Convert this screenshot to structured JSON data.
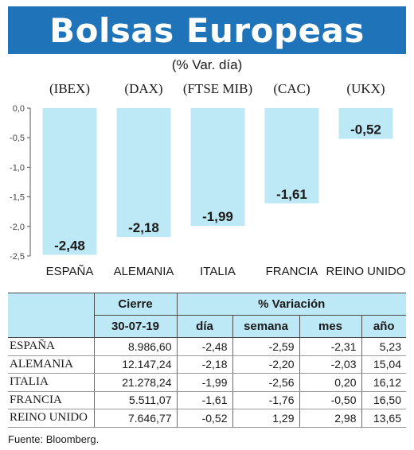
{
  "title": "Bolsas Europeas",
  "subtitle": "(% Var. día)",
  "chart_data": {
    "type": "bar",
    "index_codes": [
      "(IBEX)",
      "(DAX)",
      "(FTSE MIB)",
      "(CAC)",
      "(UKX)"
    ],
    "categories": [
      "ESPAÑA",
      "ALEMANIA",
      "ITALIA",
      "FRANCIA",
      "REINO UNIDO"
    ],
    "values": [
      -2.48,
      -2.18,
      -1.99,
      -1.61,
      -0.52
    ],
    "value_labels": [
      "-2,48",
      "-2,18",
      "-1,99",
      "-1,61",
      "-0,52"
    ],
    "yticks": [
      0,
      -0.5,
      -1.0,
      -1.5,
      -2.0,
      -2.5
    ],
    "ytick_labels": [
      "0,0",
      "-0,5",
      "-1,0",
      "-1,5",
      "-2,0",
      "-2,5"
    ],
    "ylim": [
      -2.5,
      0
    ],
    "bar_color": "#bde8f5",
    "grid": false
  },
  "table": {
    "group_headers": [
      "Cierre",
      "% Variación"
    ],
    "sub_headers": [
      "30-07-19",
      "día",
      "semana",
      "mes",
      "año"
    ],
    "rows": [
      [
        "ESPAÑA",
        "8.986,60",
        "-2,48",
        "-2,59",
        "-2,31",
        "5,23"
      ],
      [
        "ALEMANIA",
        "12.147,24",
        "-2,18",
        "-2,20",
        "-2,03",
        "15,04"
      ],
      [
        "ITALIA",
        "21.278,24",
        "-1,99",
        "-2,56",
        "0,20",
        "16,12"
      ],
      [
        "FRANCIA",
        "5.511,07",
        "-1,61",
        "-1,76",
        "-0,50",
        "16,50"
      ],
      [
        "REINO UNIDO",
        "7.646,77",
        "-0,52",
        "1,29",
        "2,98",
        "13,65"
      ]
    ]
  },
  "source": "Fuente: Bloomberg.",
  "colors": {
    "banner": "#1e73b9",
    "bar": "#bde8f5",
    "header_fill": "#bde8f5"
  }
}
